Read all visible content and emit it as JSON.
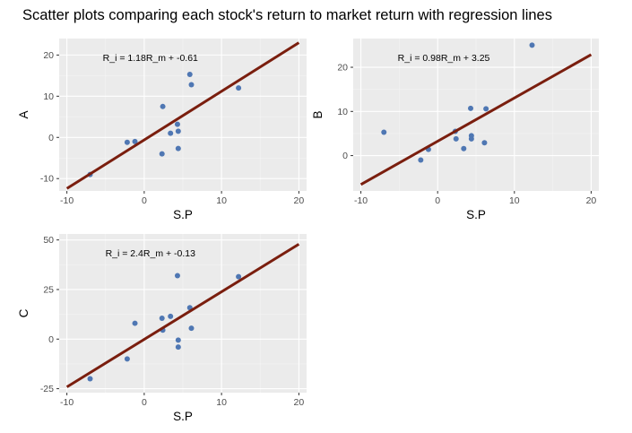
{
  "title": "Scatter plots comparing each stock's return to market return with regression lines",
  "colors": {
    "panel_background": "#ebebeb",
    "grid_major": "#ffffff",
    "grid_minor": "#f4f4f4",
    "point": "#4f77b3",
    "regression_line": "#7a1e0e",
    "axis_text": "#4d4d4d",
    "label_text": "#000000"
  },
  "chart_data": [
    {
      "type": "scatter",
      "panel": "A",
      "xlabel": "S.P",
      "ylabel": "A",
      "annotation": "R_i = 1.18R_m + -0.61",
      "xlim": [
        -11,
        21
      ],
      "ylim": [
        -13,
        24
      ],
      "x_ticks": [
        -10,
        0,
        10,
        20
      ],
      "y_ticks": [
        -10,
        0,
        10,
        20
      ],
      "grid": true,
      "regression": {
        "slope": 1.18,
        "intercept": -0.61,
        "x_range": [
          -10,
          20
        ]
      },
      "points": [
        {
          "x": -7,
          "y": -9
        },
        {
          "x": -2.2,
          "y": -1.2
        },
        {
          "x": -1.2,
          "y": -1
        },
        {
          "x": 2.3,
          "y": -4
        },
        {
          "x": 2.4,
          "y": 7.5
        },
        {
          "x": 3.4,
          "y": 1
        },
        {
          "x": 4.3,
          "y": 3.2
        },
        {
          "x": 4.4,
          "y": 1.5
        },
        {
          "x": 4.4,
          "y": -2.7
        },
        {
          "x": 5.9,
          "y": 15.3
        },
        {
          "x": 6.1,
          "y": 12.8
        },
        {
          "x": 12.2,
          "y": 12
        }
      ]
    },
    {
      "type": "scatter",
      "panel": "B",
      "xlabel": "S.P",
      "ylabel": "B",
      "annotation": "R_i = 0.98R_m + 3.25",
      "xlim": [
        -11,
        21
      ],
      "ylim": [
        -8,
        26.5
      ],
      "x_ticks": [
        -10,
        0,
        10,
        20
      ],
      "y_ticks": [
        0,
        10,
        20
      ],
      "grid": true,
      "regression": {
        "slope": 0.98,
        "intercept": 3.25,
        "x_range": [
          -10,
          20
        ]
      },
      "points": [
        {
          "x": -7,
          "y": 5.3
        },
        {
          "x": -2.2,
          "y": -1
        },
        {
          "x": -1.2,
          "y": 1.4
        },
        {
          "x": 2.3,
          "y": 5.5
        },
        {
          "x": 2.4,
          "y": 3.8
        },
        {
          "x": 3.4,
          "y": 1.6
        },
        {
          "x": 4.3,
          "y": 10.7
        },
        {
          "x": 4.4,
          "y": 4.5
        },
        {
          "x": 4.4,
          "y": 3.8
        },
        {
          "x": 6.1,
          "y": 2.9
        },
        {
          "x": 6.3,
          "y": 10.6
        },
        {
          "x": 12.3,
          "y": 25
        }
      ]
    },
    {
      "type": "scatter",
      "panel": "C",
      "xlabel": "S.P",
      "ylabel": "C",
      "annotation": "R_i = 2.4R_m + -0.13",
      "xlim": [
        -11,
        21
      ],
      "ylim": [
        -27,
        53
      ],
      "x_ticks": [
        -10,
        0,
        10,
        20
      ],
      "y_ticks": [
        -25,
        0,
        25,
        50
      ],
      "grid": true,
      "regression": {
        "slope": 2.4,
        "intercept": -0.13,
        "x_range": [
          -10,
          20
        ]
      },
      "points": [
        {
          "x": -7,
          "y": -20
        },
        {
          "x": -2.2,
          "y": -10
        },
        {
          "x": -1.2,
          "y": 8
        },
        {
          "x": 2.3,
          "y": 10.5
        },
        {
          "x": 2.4,
          "y": 4.5
        },
        {
          "x": 3.4,
          "y": 11.5
        },
        {
          "x": 4.3,
          "y": 32
        },
        {
          "x": 4.4,
          "y": -0.5
        },
        {
          "x": 4.4,
          "y": -4
        },
        {
          "x": 5.9,
          "y": 15.8
        },
        {
          "x": 6.1,
          "y": 5.5
        },
        {
          "x": 12.2,
          "y": 31.5
        }
      ]
    }
  ]
}
